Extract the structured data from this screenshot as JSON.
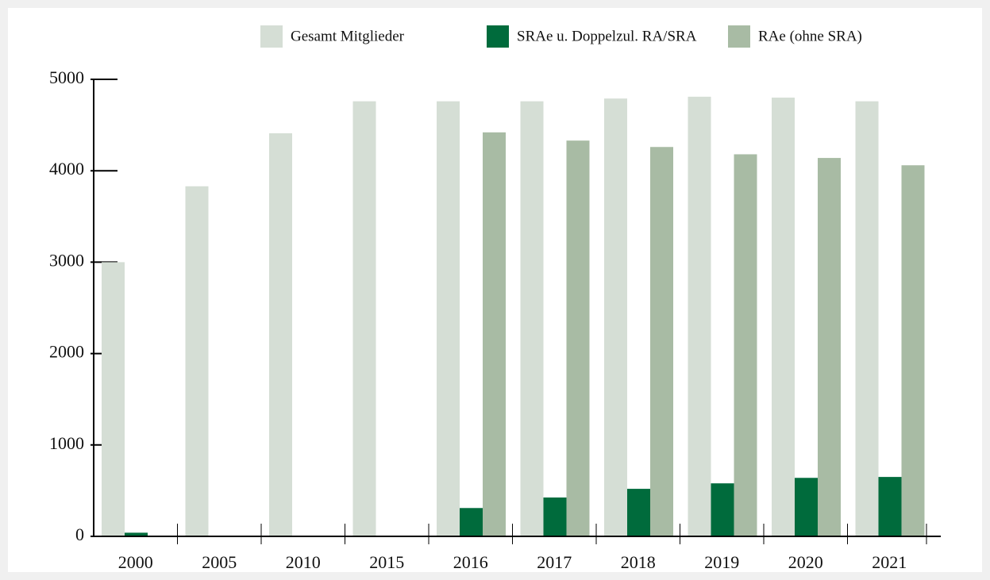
{
  "chart_data": {
    "type": "bar",
    "categories": [
      "2000",
      "2005",
      "2010",
      "2015",
      "2016",
      "2017",
      "2018",
      "2019",
      "2020",
      "2021"
    ],
    "series": [
      {
        "name": "Gesamt Mitglieder",
        "color": "#d5ded5",
        "values": [
          3000,
          3830,
          4410,
          4760,
          4760,
          4760,
          4790,
          4810,
          4800,
          4760
        ]
      },
      {
        "name": "SRAe u. Doppelzul. RA/SRA",
        "color": "#006b3c",
        "values": [
          40,
          null,
          null,
          null,
          310,
          425,
          520,
          580,
          640,
          650
        ]
      },
      {
        "name": "RAe (ohne SRA)",
        "color": "#a8bba4",
        "values": [
          null,
          null,
          null,
          null,
          4420,
          4330,
          4260,
          4180,
          4140,
          4060
        ]
      }
    ],
    "ylim": [
      0,
      5000
    ],
    "yticks": [
      0,
      1000,
      2000,
      3000,
      4000,
      5000
    ],
    "legend": "top-right"
  }
}
